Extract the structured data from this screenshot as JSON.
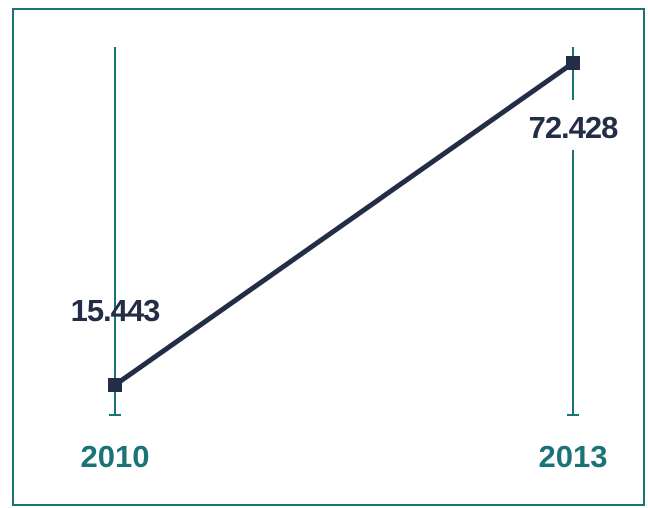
{
  "chart_data": {
    "type": "line",
    "categories": [
      "2010",
      "2013"
    ],
    "series": [
      {
        "values": [
          15.443,
          72.428
        ],
        "data_labels": [
          "15.443",
          "72.428"
        ]
      }
    ],
    "title": "",
    "xlabel": "",
    "ylabel": "",
    "ylim": [
      10,
      75
    ],
    "grid": false,
    "legend": "none",
    "colors": {
      "line": "#232d45",
      "axis": "#1a7377",
      "label": "#232d45",
      "category_label": "#1a7377"
    }
  }
}
